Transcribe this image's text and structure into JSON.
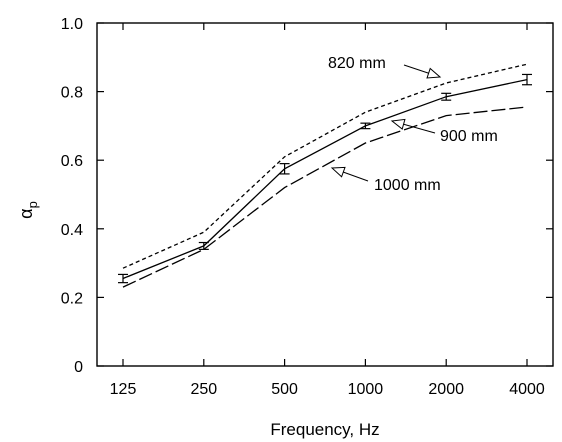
{
  "chart_data": {
    "type": "line",
    "title": "",
    "xlabel": "Frequency, Hz",
    "ylabel_main": "α",
    "ylabel_sub": "p",
    "categories": [
      "125",
      "250",
      "500",
      "1000",
      "2000",
      "4000"
    ],
    "ylim": [
      0,
      1.0
    ],
    "yticks": [
      "0",
      "0.2",
      "0.4",
      "0.6",
      "0.8",
      "1.0"
    ],
    "grid": false,
    "series": [
      {
        "name": "820 mm",
        "style": "dashed-short",
        "values": [
          0.285,
          0.39,
          0.61,
          0.74,
          0.825,
          0.88
        ],
        "error_bars": false
      },
      {
        "name": "900 mm",
        "style": "solid",
        "values": [
          0.255,
          0.35,
          0.575,
          0.7,
          0.785,
          0.835
        ],
        "errors": [
          0.012,
          0.01,
          0.015,
          0.008,
          0.01,
          0.015
        ],
        "error_bars": true
      },
      {
        "name": "1000 mm",
        "style": "dashed-long",
        "values": [
          0.23,
          0.34,
          0.52,
          0.65,
          0.73,
          0.755
        ],
        "error_bars": false
      }
    ],
    "annotations": [
      {
        "label": "820 mm",
        "series": 0
      },
      {
        "label": "900 mm",
        "series": 1
      },
      {
        "label": "1000 mm",
        "series": 2
      }
    ]
  }
}
